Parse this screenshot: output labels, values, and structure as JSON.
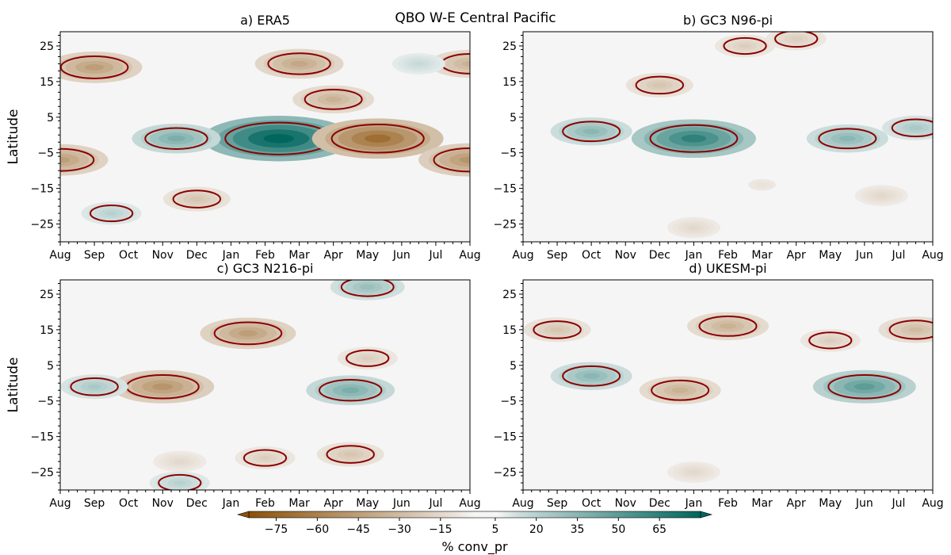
{
  "figure": {
    "suptitle": "QBO W-E Central Pacific"
  },
  "shared": {
    "month_ticks": [
      "Aug",
      "Sep",
      "Oct",
      "Nov",
      "Dec",
      "Jan",
      "Feb",
      "Mar",
      "Apr",
      "May",
      "Jun",
      "Jul",
      "Aug"
    ],
    "lat_ticks": [
      25,
      15,
      5,
      -5,
      -15,
      -25
    ],
    "lat_range": [
      -30,
      29
    ],
    "ylabel": "Latitude"
  },
  "colorbar": {
    "label": "% conv_pr",
    "ticks": [
      -75,
      -60,
      -45,
      -30,
      -15,
      5,
      20,
      35,
      50,
      65
    ],
    "ticklabels": [
      "−75",
      "−60",
      "−45",
      "−30",
      "−15",
      "5",
      "20",
      "35",
      "50",
      "65"
    ],
    "range": [
      -85,
      80
    ],
    "colors": {
      "negative": "#8c510a",
      "neutral": "#f5f5f5",
      "positive": "#01665e",
      "contour": "#8b0000"
    }
  },
  "chart_data": [
    {
      "type": "heatmap",
      "title": "a) ERA5",
      "xlabel": "",
      "ylabel": "Latitude",
      "x_categories": [
        "Aug",
        "Sep",
        "Oct",
        "Nov",
        "Dec",
        "Jan",
        "Feb",
        "Mar",
        "Apr",
        "May",
        "Jun",
        "Jul",
        "Aug"
      ],
      "ylim": [
        -30,
        29
      ],
      "features": [
        {
          "month": 6.4,
          "lat": -1,
          "value": 85
        },
        {
          "month": 3.4,
          "lat": -1,
          "value": 40
        },
        {
          "month": 9.3,
          "lat": -1,
          "value": -70
        },
        {
          "month": 1.0,
          "lat": 19,
          "value": -45
        },
        {
          "month": 7.0,
          "lat": 20,
          "value": -40
        },
        {
          "month": 8.0,
          "lat": 10,
          "value": -35
        },
        {
          "month": 0.0,
          "lat": -7,
          "value": -45
        },
        {
          "month": 12.0,
          "lat": -7,
          "value": -50
        },
        {
          "month": 12.0,
          "lat": 20,
          "value": -35
        },
        {
          "month": 4.0,
          "lat": -18,
          "value": -25
        },
        {
          "month": 1.5,
          "lat": -22,
          "value": 20
        },
        {
          "month": 10.5,
          "lat": 20,
          "value": 15
        }
      ]
    },
    {
      "type": "heatmap",
      "title": "b) GC3 N96-pi",
      "xlabel": "",
      "ylabel": "",
      "x_categories": [
        "Aug",
        "Sep",
        "Oct",
        "Nov",
        "Dec",
        "Jan",
        "Feb",
        "Mar",
        "Apr",
        "May",
        "Jun",
        "Jul",
        "Aug"
      ],
      "ylim": [
        -30,
        29
      ],
      "features": [
        {
          "month": 5.0,
          "lat": -1,
          "value": 65
        },
        {
          "month": 2.0,
          "lat": 1,
          "value": 35
        },
        {
          "month": 9.5,
          "lat": -1,
          "value": 35
        },
        {
          "month": 11.5,
          "lat": 2,
          "value": 25
        },
        {
          "month": 4.0,
          "lat": 14,
          "value": -25
        },
        {
          "month": 6.5,
          "lat": 25,
          "value": -20
        },
        {
          "month": 8.0,
          "lat": 27,
          "value": -20
        },
        {
          "month": 10.5,
          "lat": -17,
          "value": -15
        },
        {
          "month": 5.0,
          "lat": -26,
          "value": -15
        },
        {
          "month": 7.0,
          "lat": -14,
          "value": -10
        }
      ]
    },
    {
      "type": "heatmap",
      "title": "c) GC3 N216-pi",
      "xlabel": "",
      "ylabel": "Latitude",
      "x_categories": [
        "Aug",
        "Sep",
        "Oct",
        "Nov",
        "Dec",
        "Jan",
        "Feb",
        "Mar",
        "Apr",
        "May",
        "Jun",
        "Jul",
        "Aug"
      ],
      "ylim": [
        -30,
        29
      ],
      "features": [
        {
          "month": 5.5,
          "lat": 14,
          "value": -45
        },
        {
          "month": 3.0,
          "lat": -1,
          "value": -50
        },
        {
          "month": 8.5,
          "lat": -2,
          "value": 40
        },
        {
          "month": 1.0,
          "lat": -1,
          "value": 25
        },
        {
          "month": 9.0,
          "lat": 7,
          "value": -20
        },
        {
          "month": 8.5,
          "lat": -20,
          "value": -25
        },
        {
          "month": 6.0,
          "lat": -21,
          "value": -20
        },
        {
          "month": 3.5,
          "lat": -22,
          "value": -15
        },
        {
          "month": 9.0,
          "lat": 27,
          "value": 30
        },
        {
          "month": 3.5,
          "lat": -28,
          "value": 20
        }
      ]
    },
    {
      "type": "heatmap",
      "title": "d) UKESM-pi",
      "xlabel": "",
      "ylabel": "",
      "x_categories": [
        "Aug",
        "Sep",
        "Oct",
        "Nov",
        "Dec",
        "Jan",
        "Feb",
        "Mar",
        "Apr",
        "May",
        "Jun",
        "Jul",
        "Aug"
      ],
      "ylim": [
        -30,
        29
      ],
      "features": [
        {
          "month": 10.0,
          "lat": -1,
          "value": 50
        },
        {
          "month": 2.0,
          "lat": 2,
          "value": 35
        },
        {
          "month": 6.0,
          "lat": 16,
          "value": -35
        },
        {
          "month": 1.0,
          "lat": 15,
          "value": -25
        },
        {
          "month": 11.5,
          "lat": 15,
          "value": -30
        },
        {
          "month": 4.6,
          "lat": -2,
          "value": -35
        },
        {
          "month": 9.0,
          "lat": 12,
          "value": -20
        },
        {
          "month": 5.0,
          "lat": -25,
          "value": -15
        }
      ]
    }
  ]
}
